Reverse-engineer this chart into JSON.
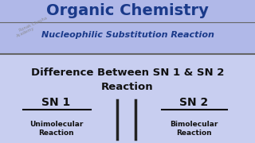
{
  "bg_top": "#b0b8e8",
  "bg_bottom": "#c8cef0",
  "title_top": "Organic Chemistry",
  "title_top_color": "#1a3a8a",
  "subtitle": "Nucleophilic Substitution Reaction",
  "subtitle_color": "#1a3a8a",
  "watermark_line1": "Ronak Chauha",
  "watermark_line2": "Academy",
  "watermark_color": "#888888",
  "divider_color": "#666666",
  "main_title": "Difference Between SN 1 & SN 2\nReaction",
  "main_title_color": "#111111",
  "sn1_label": "SN 1",
  "sn2_label": "SN 2",
  "sn1_sub": "Unimolecular\nReaction",
  "sn2_sub": "Bimolecular\nReaction",
  "label_color": "#111111",
  "separator_color": "#222222"
}
